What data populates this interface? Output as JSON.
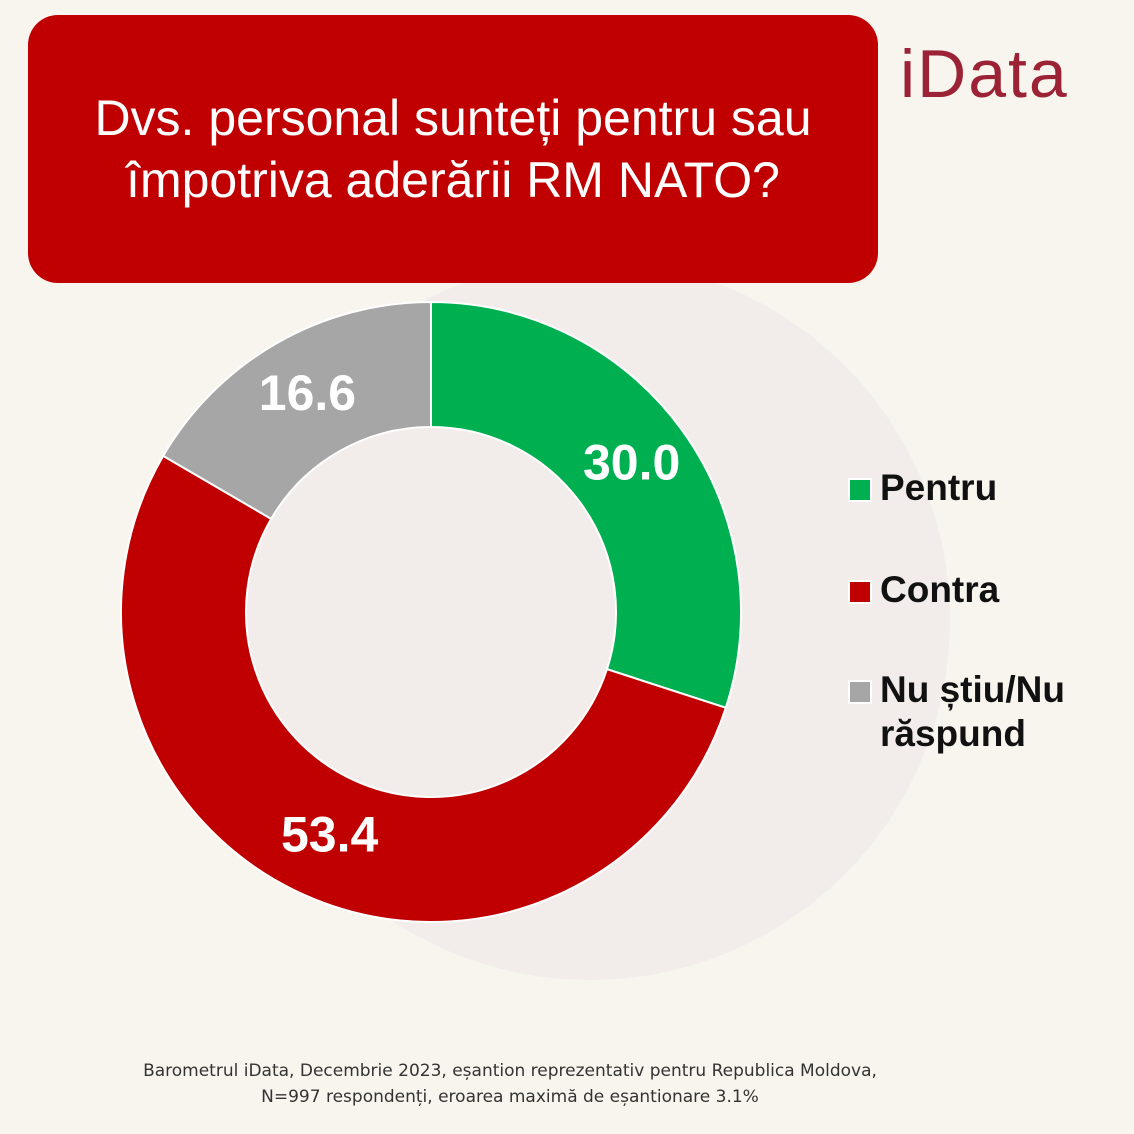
{
  "chart_data": {
    "type": "donut",
    "title": "Dvs. personal sunteți pentru sau împotriva aderării RM NATO?",
    "logo": "iData",
    "categories": [
      "Pentru",
      "Contra",
      "Nu știu/Nu răspund"
    ],
    "values": [
      30.0,
      53.4,
      16.6
    ],
    "value_labels": [
      "30.0",
      "53.4",
      "16.6"
    ],
    "colors": [
      "#00b050",
      "#c00000",
      "#a6a6a6"
    ],
    "legend": "right",
    "footnote": [
      "Barometrul iData, Decembrie 2023, eșantion reprezentativ pentru Republica Moldova,",
      "N=997 respondenți, eroarea maximă de eșantionare 3.1%"
    ]
  }
}
